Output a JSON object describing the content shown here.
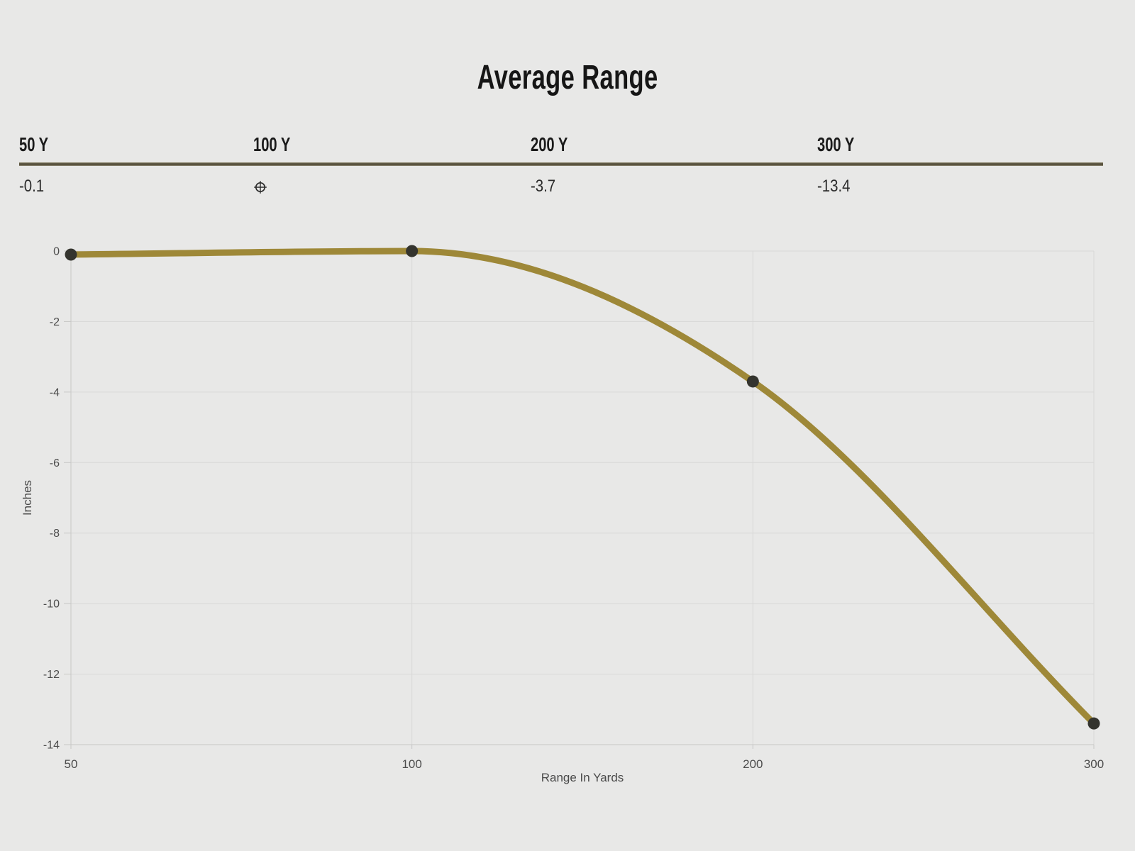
{
  "title": "Average Range",
  "summary": {
    "columns": [
      {
        "label": "50 Y",
        "value": "-0.1"
      },
      {
        "label": "100 Y",
        "value": "",
        "icon": "zero-crosshair"
      },
      {
        "label": "200 Y",
        "value": "-3.7"
      },
      {
        "label": "300 Y",
        "value": "-13.4"
      }
    ]
  },
  "chart_data": {
    "type": "line",
    "categories": [
      "50",
      "100",
      "200",
      "300"
    ],
    "values": [
      -0.1,
      0,
      -3.7,
      -13.4
    ],
    "title": "",
    "xlabel": "Range In Yards",
    "ylabel": "Inches",
    "ylim": [
      -14,
      0
    ],
    "yticks": [
      0,
      -2,
      -4,
      -6,
      -8,
      -10,
      -12,
      -14
    ],
    "grid": true,
    "legend": "none",
    "line_color": "#9e8838",
    "point_color": "#34342e",
    "grid_color": "#d8d8d7",
    "axis_color": "#c7c7c6",
    "background_color": "#e8e8e7"
  }
}
